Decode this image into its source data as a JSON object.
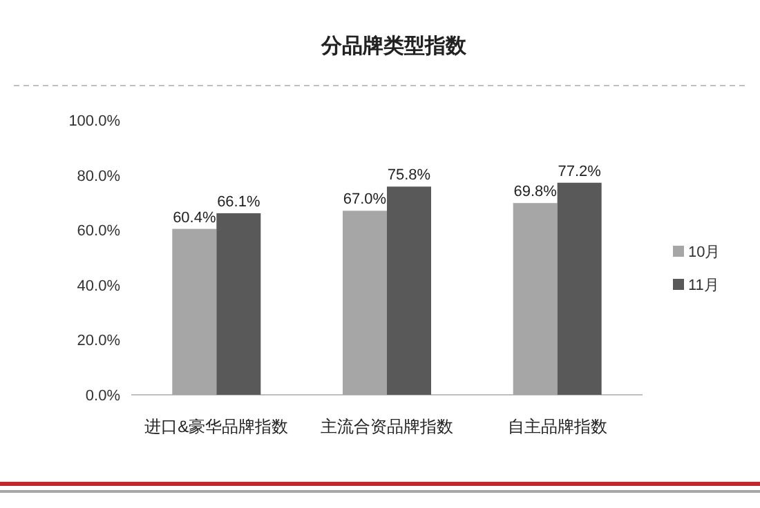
{
  "chart_data": {
    "type": "bar",
    "title": "分品牌类型指数",
    "categories": [
      "进口&豪华品牌指数",
      "主流合资品牌指数",
      "自主品牌指数"
    ],
    "series": [
      {
        "name": "10月",
        "color": "#a6a6a6",
        "values": [
          60.4,
          67.0,
          69.8
        ],
        "value_labels": [
          "60.4%",
          "67.0%",
          "69.8%"
        ]
      },
      {
        "name": "11月",
        "color": "#595959",
        "values": [
          66.1,
          75.8,
          77.2
        ],
        "value_labels": [
          "66.1%",
          "75.8%",
          "77.2%"
        ]
      }
    ],
    "ylim": [
      0,
      100
    ],
    "yticks": [
      {
        "value": 0,
        "label": "0.0%"
      },
      {
        "value": 20,
        "label": "20.0%"
      },
      {
        "value": 40,
        "label": "40.0%"
      },
      {
        "value": 60,
        "label": "60.0%"
      },
      {
        "value": 80,
        "label": "80.0%"
      },
      {
        "value": 100,
        "label": "100.0%"
      }
    ],
    "grid": false,
    "legend": "right"
  }
}
